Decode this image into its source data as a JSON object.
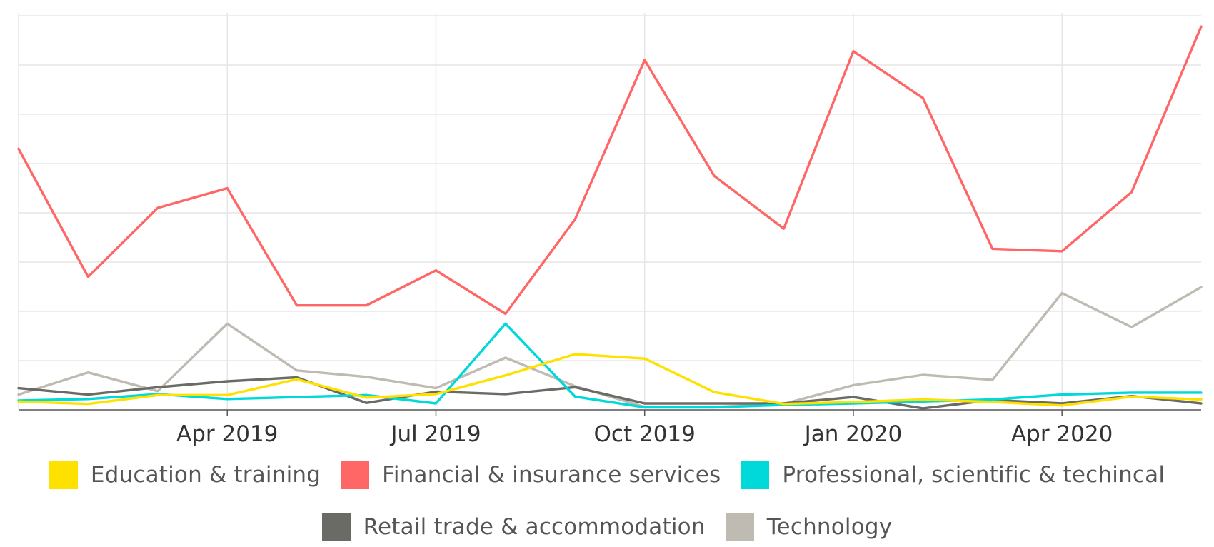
{
  "chart_data": {
    "type": "line",
    "title": "",
    "xlabel": "",
    "ylabel": "",
    "x": [
      "Jan 2019",
      "Feb 2019",
      "Mar 2019",
      "Apr 2019",
      "May 2019",
      "Jun 2019",
      "Jul 2019",
      "Aug 2019",
      "Sep 2019",
      "Oct 2019",
      "Nov 2019",
      "Dec 2019",
      "Jan 2020",
      "Feb 2020",
      "Mar 2020",
      "Apr 2020",
      "May 2020",
      "Jun 2020"
    ],
    "x_tick_labels": [
      "Apr 2019",
      "Jul 2019",
      "Oct 2019",
      "Jan 2020",
      "Apr 2020"
    ],
    "x_tick_index": [
      3,
      6,
      9,
      12,
      15
    ],
    "ylim": [
      0,
      8
    ],
    "y_gridlines": [
      0,
      1,
      2,
      3,
      4,
      5,
      6,
      7,
      8
    ],
    "y_tick_labels_visible": false,
    "grid": true,
    "legend_position": "bottom",
    "series": [
      {
        "name": "Education & training",
        "color": "#FFE100",
        "values": [
          0.17,
          0.12,
          0.3,
          0.3,
          0.62,
          0.25,
          0.32,
          0.7,
          1.13,
          1.04,
          0.36,
          0.12,
          0.16,
          0.21,
          0.16,
          0.09,
          0.27,
          0.21
        ]
      },
      {
        "name": "Financial & insurance services",
        "color": "#FF6666",
        "values": [
          5.3,
          2.7,
          4.1,
          4.5,
          2.12,
          2.12,
          2.83,
          1.95,
          3.87,
          7.1,
          4.75,
          3.68,
          7.28,
          6.33,
          3.27,
          3.22,
          4.42,
          7.78
        ]
      },
      {
        "name": "Professional, scientific & techincal",
        "color": "#00D9D9",
        "values": [
          0.19,
          0.22,
          0.32,
          0.22,
          0.26,
          0.3,
          0.13,
          1.75,
          0.27,
          0.05,
          0.05,
          0.1,
          0.13,
          0.17,
          0.21,
          0.31,
          0.35,
          0.35
        ]
      },
      {
        "name": "Retail trade & accommodation",
        "color": "#6B6B66",
        "values": [
          0.44,
          0.31,
          0.46,
          0.58,
          0.66,
          0.14,
          0.37,
          0.32,
          0.46,
          0.13,
          0.13,
          0.13,
          0.26,
          0.03,
          0.2,
          0.13,
          0.28,
          0.13
        ]
      },
      {
        "name": "Technology",
        "color": "#BFBBB3",
        "values": [
          0.31,
          0.76,
          0.38,
          1.75,
          0.8,
          0.67,
          0.44,
          1.06,
          0.48,
          0.06,
          0.06,
          0.12,
          0.5,
          0.71,
          0.61,
          2.37,
          1.68,
          2.49
        ]
      }
    ]
  }
}
